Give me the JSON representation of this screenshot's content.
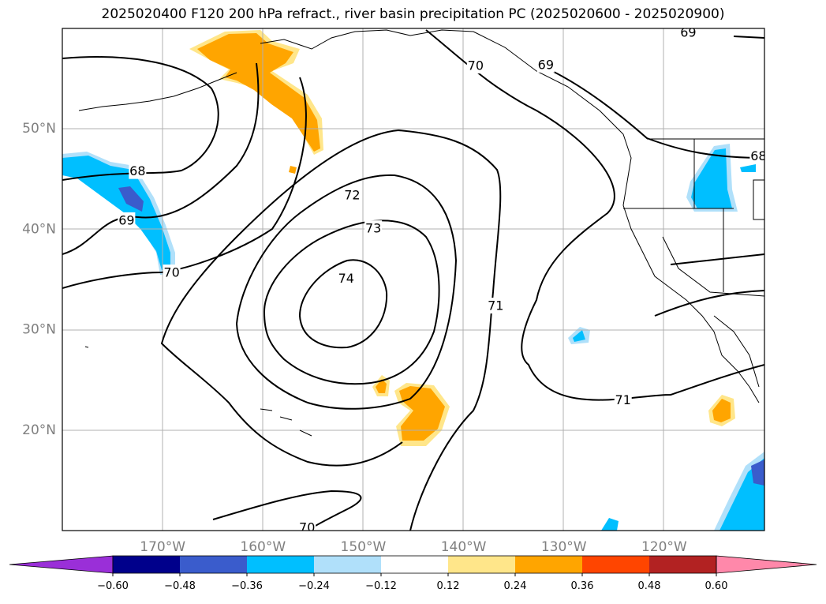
{
  "title": "2025020400 F120 200 hPa refract., river basin precipitation PC (2025020600 - 2025020900)",
  "map": {
    "extent": {
      "lon_min": -180,
      "lon_max": -110,
      "lat_min": 10,
      "lat_max": 60
    },
    "lat_ticks": [
      {
        "value": 20,
        "label": "20°N"
      },
      {
        "value": 30,
        "label": "30°N"
      },
      {
        "value": 40,
        "label": "40°N"
      },
      {
        "value": 50,
        "label": "50°N"
      }
    ],
    "lon_ticks": [
      {
        "value": -170,
        "label": "170°W"
      },
      {
        "value": -160,
        "label": "160°W"
      },
      {
        "value": -150,
        "label": "150°W"
      },
      {
        "value": -140,
        "label": "140°W"
      },
      {
        "value": -130,
        "label": "130°W"
      },
      {
        "value": -120,
        "label": "120°W"
      }
    ],
    "grid": true,
    "contour_labels": [
      {
        "text": "68",
        "lon": -172.5,
        "lat": 45.8
      },
      {
        "text": "69",
        "lon": -173.6,
        "lat": 40.9
      },
      {
        "text": "70",
        "lon": -169.1,
        "lat": 35.7
      },
      {
        "text": "72",
        "lon": -151.1,
        "lat": 43.4
      },
      {
        "text": "73",
        "lon": -149.0,
        "lat": 40.1
      },
      {
        "text": "74",
        "lon": -151.7,
        "lat": 35.1
      },
      {
        "text": "70",
        "lon": -138.8,
        "lat": 56.3
      },
      {
        "text": "69",
        "lon": -131.8,
        "lat": 56.4
      },
      {
        "text": "69",
        "lon": -117.6,
        "lat": 59.6
      },
      {
        "text": "68",
        "lon": -110.6,
        "lat": 47.3
      },
      {
        "text": "71",
        "lon": -136.8,
        "lat": 32.4
      },
      {
        "text": "71",
        "lon": -124.1,
        "lat": 23.0
      },
      {
        "text": "70",
        "lon": -155.6,
        "lat": 10.3
      }
    ]
  },
  "colorbar": {
    "colors": [
      "#9a2fd8",
      "#00008b",
      "#3a5ccc",
      "#00bfff",
      "#b0e0fa",
      "#ffffff",
      "#ffe68a",
      "#ffa500",
      "#ff4500",
      "#b22222",
      "#ff88aa"
    ],
    "tick_labels": [
      "−0.60",
      "−0.48",
      "−0.36",
      "−0.24",
      "−0.12",
      "0.12",
      "0.24",
      "0.36",
      "0.48",
      "0.60"
    ],
    "extend": "both"
  }
}
